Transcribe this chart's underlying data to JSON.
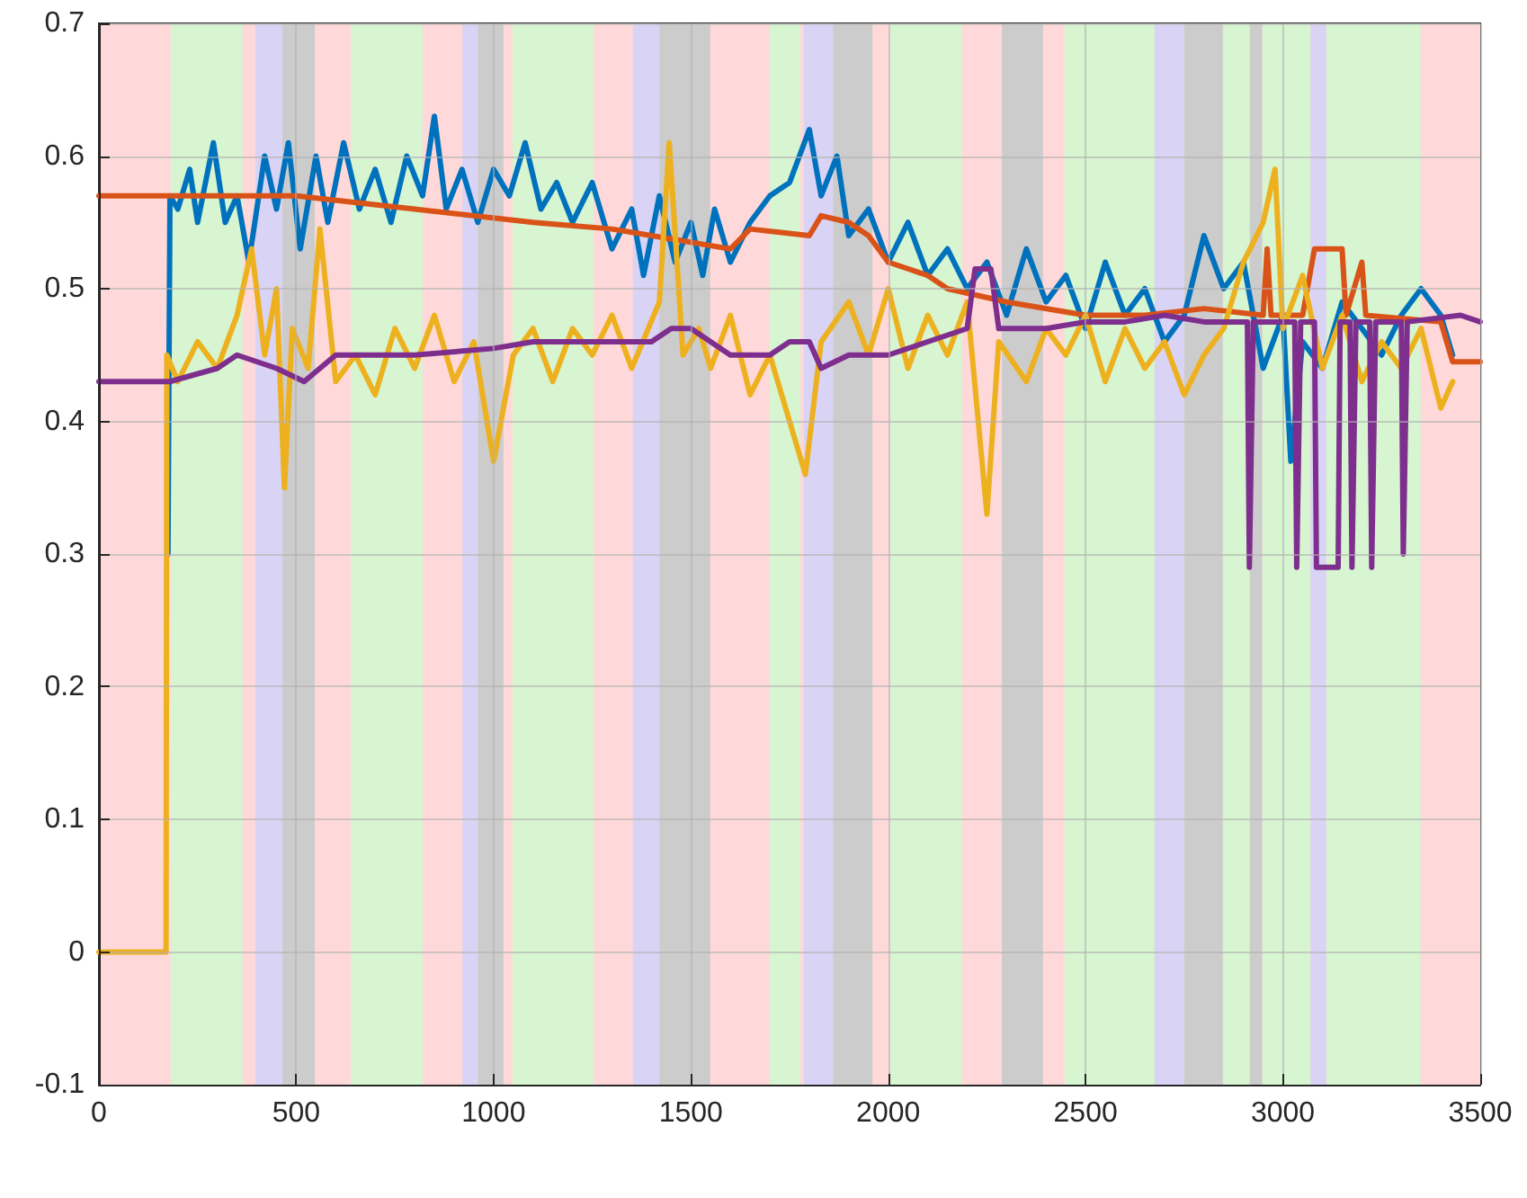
{
  "chart_data": {
    "type": "line",
    "xlim": [
      0,
      3500
    ],
    "xticks": [
      0,
      500,
      1000,
      1500,
      2000,
      2500,
      3000,
      3500
    ],
    "ylim": [
      -0.1,
      0.7
    ],
    "yticks": [
      -0.1,
      0,
      0.1,
      0.2,
      0.3,
      0.4,
      0.5,
      0.6,
      0.7
    ],
    "grid": true,
    "marker": "none",
    "bands": [
      {
        "axis": "x",
        "from": 0,
        "to": 3500,
        "color": "#ffd9d9"
      },
      {
        "axis": "x",
        "from": 182,
        "to": 364,
        "color": "#d6f5d0"
      },
      {
        "axis": "x",
        "from": 396,
        "to": 465,
        "color": "#d9d4f5"
      },
      {
        "axis": "x",
        "from": 465,
        "to": 547,
        "color": "#cccccc"
      },
      {
        "axis": "x",
        "from": 638,
        "to": 820,
        "color": "#d6f5d0"
      },
      {
        "axis": "x",
        "from": 921,
        "to": 960,
        "color": "#d9d4f5"
      },
      {
        "axis": "x",
        "from": 960,
        "to": 1025,
        "color": "#cccccc"
      },
      {
        "axis": "x",
        "from": 1048,
        "to": 1253,
        "color": "#d6f5d0"
      },
      {
        "axis": "x",
        "from": 1353,
        "to": 1420,
        "color": "#d9d4f5"
      },
      {
        "axis": "x",
        "from": 1420,
        "to": 1549,
        "color": "#cccccc"
      },
      {
        "axis": "x",
        "from": 1700,
        "to": 1777,
        "color": "#d6f5d0"
      },
      {
        "axis": "x",
        "from": 1786,
        "to": 1860,
        "color": "#d9d4f5"
      },
      {
        "axis": "x",
        "from": 1860,
        "to": 1960,
        "color": "#cccccc"
      },
      {
        "axis": "x",
        "from": 2005,
        "to": 2187,
        "color": "#d6f5d0"
      },
      {
        "axis": "x",
        "from": 2288,
        "to": 2392,
        "color": "#cccccc"
      },
      {
        "axis": "x",
        "from": 2447,
        "to": 2675,
        "color": "#d6f5d0"
      },
      {
        "axis": "x",
        "from": 2675,
        "to": 2750,
        "color": "#d9d4f5"
      },
      {
        "axis": "x",
        "from": 2750,
        "to": 2848,
        "color": "#cccccc"
      },
      {
        "axis": "x",
        "from": 2848,
        "to": 2916,
        "color": "#d6f5d0"
      },
      {
        "axis": "x",
        "from": 2916,
        "to": 2948,
        "color": "#cccccc"
      },
      {
        "axis": "x",
        "from": 2948,
        "to": 3070,
        "color": "#d6f5d0"
      },
      {
        "axis": "x",
        "from": 3070,
        "to": 3110,
        "color": "#d9d4f5"
      },
      {
        "axis": "x",
        "from": 3110,
        "to": 3349,
        "color": "#d6f5d0"
      }
    ],
    "series": [
      {
        "color": "#0072bd",
        "x": [
          175,
          180,
          200,
          230,
          250,
          290,
          320,
          350,
          380,
          420,
          450,
          480,
          510,
          550,
          580,
          620,
          660,
          700,
          740,
          780,
          820,
          850,
          880,
          920,
          960,
          1000,
          1040,
          1080,
          1120,
          1160,
          1200,
          1250,
          1300,
          1350,
          1380,
          1420,
          1460,
          1500,
          1530,
          1560,
          1600,
          1650,
          1700,
          1750,
          1800,
          1830,
          1870,
          1900,
          1950,
          2000,
          2050,
          2100,
          2150,
          2200,
          2250,
          2300,
          2350,
          2400,
          2450,
          2500,
          2550,
          2600,
          2650,
          2700,
          2750,
          2800,
          2850,
          2900,
          2950,
          3000,
          3020,
          3050,
          3100,
          3150,
          3200,
          3250,
          3300,
          3350,
          3400,
          3430
        ],
        "values": [
          0.3,
          0.57,
          0.56,
          0.59,
          0.55,
          0.61,
          0.55,
          0.57,
          0.52,
          0.6,
          0.56,
          0.61,
          0.53,
          0.6,
          0.55,
          0.61,
          0.56,
          0.59,
          0.55,
          0.6,
          0.57,
          0.63,
          0.56,
          0.59,
          0.55,
          0.59,
          0.57,
          0.61,
          0.56,
          0.58,
          0.55,
          0.58,
          0.53,
          0.56,
          0.51,
          0.57,
          0.52,
          0.55,
          0.51,
          0.56,
          0.52,
          0.55,
          0.57,
          0.58,
          0.62,
          0.57,
          0.6,
          0.54,
          0.56,
          0.52,
          0.55,
          0.51,
          0.53,
          0.5,
          0.52,
          0.48,
          0.53,
          0.49,
          0.51,
          0.47,
          0.52,
          0.48,
          0.5,
          0.46,
          0.48,
          0.54,
          0.5,
          0.52,
          0.44,
          0.48,
          0.37,
          0.46,
          0.44,
          0.49,
          0.47,
          0.45,
          0.48,
          0.5,
          0.48,
          0.45
        ]
      },
      {
        "color": "#d95319",
        "x": [
          0,
          500,
          800,
          1100,
          1300,
          1500,
          1600,
          1650,
          1800,
          1830,
          1900,
          1950,
          2000,
          2100,
          2150,
          2300,
          2500,
          2650,
          2800,
          2950,
          2960,
          2970,
          3050,
          3080,
          3150,
          3160,
          3200,
          3210,
          3400,
          3430,
          3500
        ],
        "values": [
          0.57,
          0.57,
          0.56,
          0.55,
          0.545,
          0.535,
          0.53,
          0.545,
          0.54,
          0.555,
          0.55,
          0.54,
          0.52,
          0.51,
          0.5,
          0.49,
          0.48,
          0.48,
          0.485,
          0.48,
          0.53,
          0.48,
          0.48,
          0.53,
          0.53,
          0.48,
          0.52,
          0.48,
          0.475,
          0.445,
          0.445
        ]
      },
      {
        "color": "#edb120",
        "x": [
          0,
          170,
          172,
          200,
          250,
          300,
          350,
          387,
          420,
          450,
          470,
          490,
          530,
          560,
          600,
          650,
          700,
          750,
          800,
          850,
          900,
          950,
          1000,
          1050,
          1100,
          1150,
          1200,
          1250,
          1300,
          1350,
          1420,
          1445,
          1480,
          1520,
          1550,
          1600,
          1650,
          1700,
          1750,
          1790,
          1830,
          1900,
          1950,
          2000,
          2050,
          2100,
          2150,
          2200,
          2250,
          2280,
          2350,
          2400,
          2450,
          2500,
          2550,
          2600,
          2650,
          2700,
          2750,
          2800,
          2850,
          2900,
          2950,
          2980,
          3000,
          3050,
          3100,
          3150,
          3200,
          3250,
          3300,
          3350,
          3400,
          3430
        ],
        "values": [
          0,
          0,
          0.45,
          0.43,
          0.46,
          0.44,
          0.48,
          0.53,
          0.45,
          0.5,
          0.35,
          0.47,
          0.44,
          0.545,
          0.43,
          0.45,
          0.42,
          0.47,
          0.44,
          0.48,
          0.43,
          0.46,
          0.37,
          0.45,
          0.47,
          0.43,
          0.47,
          0.45,
          0.48,
          0.44,
          0.49,
          0.61,
          0.45,
          0.47,
          0.44,
          0.48,
          0.42,
          0.45,
          0.4,
          0.36,
          0.46,
          0.49,
          0.45,
          0.5,
          0.44,
          0.48,
          0.45,
          0.49,
          0.33,
          0.46,
          0.43,
          0.47,
          0.45,
          0.48,
          0.43,
          0.47,
          0.44,
          0.46,
          0.42,
          0.45,
          0.47,
          0.52,
          0.55,
          0.59,
          0.47,
          0.51,
          0.44,
          0.48,
          0.43,
          0.46,
          0.44,
          0.47,
          0.41,
          0.43
        ]
      },
      {
        "color": "#7e2f8e",
        "x": [
          0,
          180,
          300,
          350,
          450,
          520,
          600,
          800,
          1000,
          1100,
          1300,
          1400,
          1450,
          1500,
          1600,
          1700,
          1750,
          1800,
          1830,
          1900,
          2000,
          2100,
          2200,
          2220,
          2260,
          2280,
          2400,
          2500,
          2600,
          2700,
          2800,
          2910,
          2915,
          2925,
          3030,
          3035,
          3045,
          3080,
          3085,
          3140,
          3145,
          3170,
          3175,
          3185,
          3220,
          3225,
          3235,
          3300,
          3305,
          3315,
          3450,
          3500
        ],
        "values": [
          0.43,
          0.43,
          0.44,
          0.45,
          0.44,
          0.43,
          0.45,
          0.45,
          0.455,
          0.46,
          0.46,
          0.46,
          0.47,
          0.47,
          0.45,
          0.45,
          0.46,
          0.46,
          0.44,
          0.45,
          0.45,
          0.46,
          0.47,
          0.515,
          0.515,
          0.47,
          0.47,
          0.475,
          0.475,
          0.48,
          0.475,
          0.475,
          0.29,
          0.475,
          0.475,
          0.29,
          0.475,
          0.475,
          0.29,
          0.29,
          0.475,
          0.475,
          0.29,
          0.475,
          0.475,
          0.29,
          0.475,
          0.475,
          0.3,
          0.475,
          0.48,
          0.475
        ]
      }
    ]
  }
}
